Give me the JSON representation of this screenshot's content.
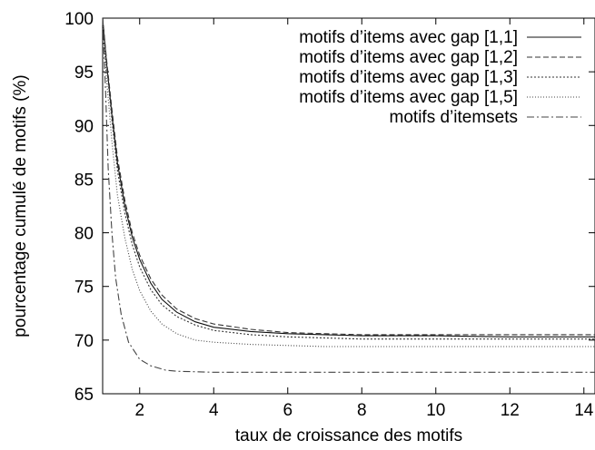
{
  "chart_data": {
    "type": "line",
    "title": "",
    "xlabel": "taux de croissance des motifs",
    "ylabel": "pourcentage cumulé de motifs (%)",
    "xlim": [
      1,
      14.3
    ],
    "ylim": [
      65,
      100
    ],
    "xticks": [
      2,
      4,
      6,
      8,
      10,
      12,
      14
    ],
    "yticks": [
      65,
      70,
      75,
      80,
      85,
      90,
      95,
      100
    ],
    "grid": false,
    "legend_position": "top-right",
    "series": [
      {
        "name": "motifs d’items avec gap [1,1]",
        "style": "solid",
        "points": [
          [
            1,
            100
          ],
          [
            1.1,
            96
          ],
          [
            1.25,
            91
          ],
          [
            1.4,
            86.5
          ],
          [
            1.6,
            82.5
          ],
          [
            1.8,
            79.6
          ],
          [
            2,
            77.5
          ],
          [
            2.3,
            75.3
          ],
          [
            2.6,
            73.8
          ],
          [
            3,
            72.6
          ],
          [
            3.5,
            71.7
          ],
          [
            4,
            71.2
          ],
          [
            5,
            70.8
          ],
          [
            6,
            70.6
          ],
          [
            7,
            70.5
          ],
          [
            8,
            70.4
          ],
          [
            10,
            70.4
          ],
          [
            12,
            70.3
          ],
          [
            14.3,
            70.3
          ]
        ]
      },
      {
        "name": "motifs d’items avec gap [1,2]",
        "style": "dashed",
        "points": [
          [
            1,
            100
          ],
          [
            1.1,
            96.3
          ],
          [
            1.25,
            91.5
          ],
          [
            1.4,
            87
          ],
          [
            1.6,
            83
          ],
          [
            1.8,
            80
          ],
          [
            2,
            77.9
          ],
          [
            2.3,
            75.7
          ],
          [
            2.6,
            74.2
          ],
          [
            3,
            72.9
          ],
          [
            3.5,
            72
          ],
          [
            4,
            71.5
          ],
          [
            5,
            71
          ],
          [
            6,
            70.7
          ],
          [
            7,
            70.6
          ],
          [
            8,
            70.5
          ],
          [
            10,
            70.5
          ],
          [
            12,
            70.5
          ],
          [
            14.3,
            70.5
          ]
        ]
      },
      {
        "name": "motifs d’items avec gap [1,3]",
        "style": "dotted-dense",
        "points": [
          [
            1,
            100
          ],
          [
            1.1,
            95.8
          ],
          [
            1.25,
            90.5
          ],
          [
            1.4,
            85.8
          ],
          [
            1.6,
            81.8
          ],
          [
            1.8,
            78.9
          ],
          [
            2,
            76.8
          ],
          [
            2.3,
            74.7
          ],
          [
            2.6,
            73.3
          ],
          [
            3,
            72.2
          ],
          [
            3.5,
            71.4
          ],
          [
            4,
            70.9
          ],
          [
            5,
            70.5
          ],
          [
            6,
            70.3
          ],
          [
            7,
            70.2
          ],
          [
            8,
            70.1
          ],
          [
            10,
            70.1
          ],
          [
            12,
            70.1
          ],
          [
            14.3,
            70.1
          ]
        ]
      },
      {
        "name": "motifs d’items avec gap [1,5]",
        "style": "dotted",
        "points": [
          [
            1,
            100
          ],
          [
            1.1,
            94.5
          ],
          [
            1.25,
            88.5
          ],
          [
            1.4,
            83.5
          ],
          [
            1.6,
            79.5
          ],
          [
            1.8,
            76.6
          ],
          [
            2,
            74.6
          ],
          [
            2.3,
            72.7
          ],
          [
            2.6,
            71.5
          ],
          [
            3,
            70.6
          ],
          [
            3.5,
            70
          ],
          [
            4,
            69.8
          ],
          [
            5,
            69.6
          ],
          [
            6,
            69.5
          ],
          [
            7,
            69.4
          ],
          [
            8,
            69.4
          ],
          [
            10,
            69.4
          ],
          [
            12,
            69.4
          ],
          [
            14.3,
            69.4
          ]
        ]
      },
      {
        "name": "motifs d’itemsets",
        "style": "dash-dot",
        "points": [
          [
            1,
            100
          ],
          [
            1.08,
            93
          ],
          [
            1.15,
            86
          ],
          [
            1.25,
            80
          ],
          [
            1.35,
            75.8
          ],
          [
            1.5,
            72.4
          ],
          [
            1.7,
            69.8
          ],
          [
            2,
            68.2
          ],
          [
            2.3,
            67.6
          ],
          [
            2.7,
            67.2
          ],
          [
            3,
            67.1
          ],
          [
            4,
            67
          ],
          [
            6,
            67
          ],
          [
            8,
            67
          ],
          [
            10,
            67
          ],
          [
            12,
            67
          ],
          [
            14.3,
            67
          ]
        ]
      }
    ]
  }
}
